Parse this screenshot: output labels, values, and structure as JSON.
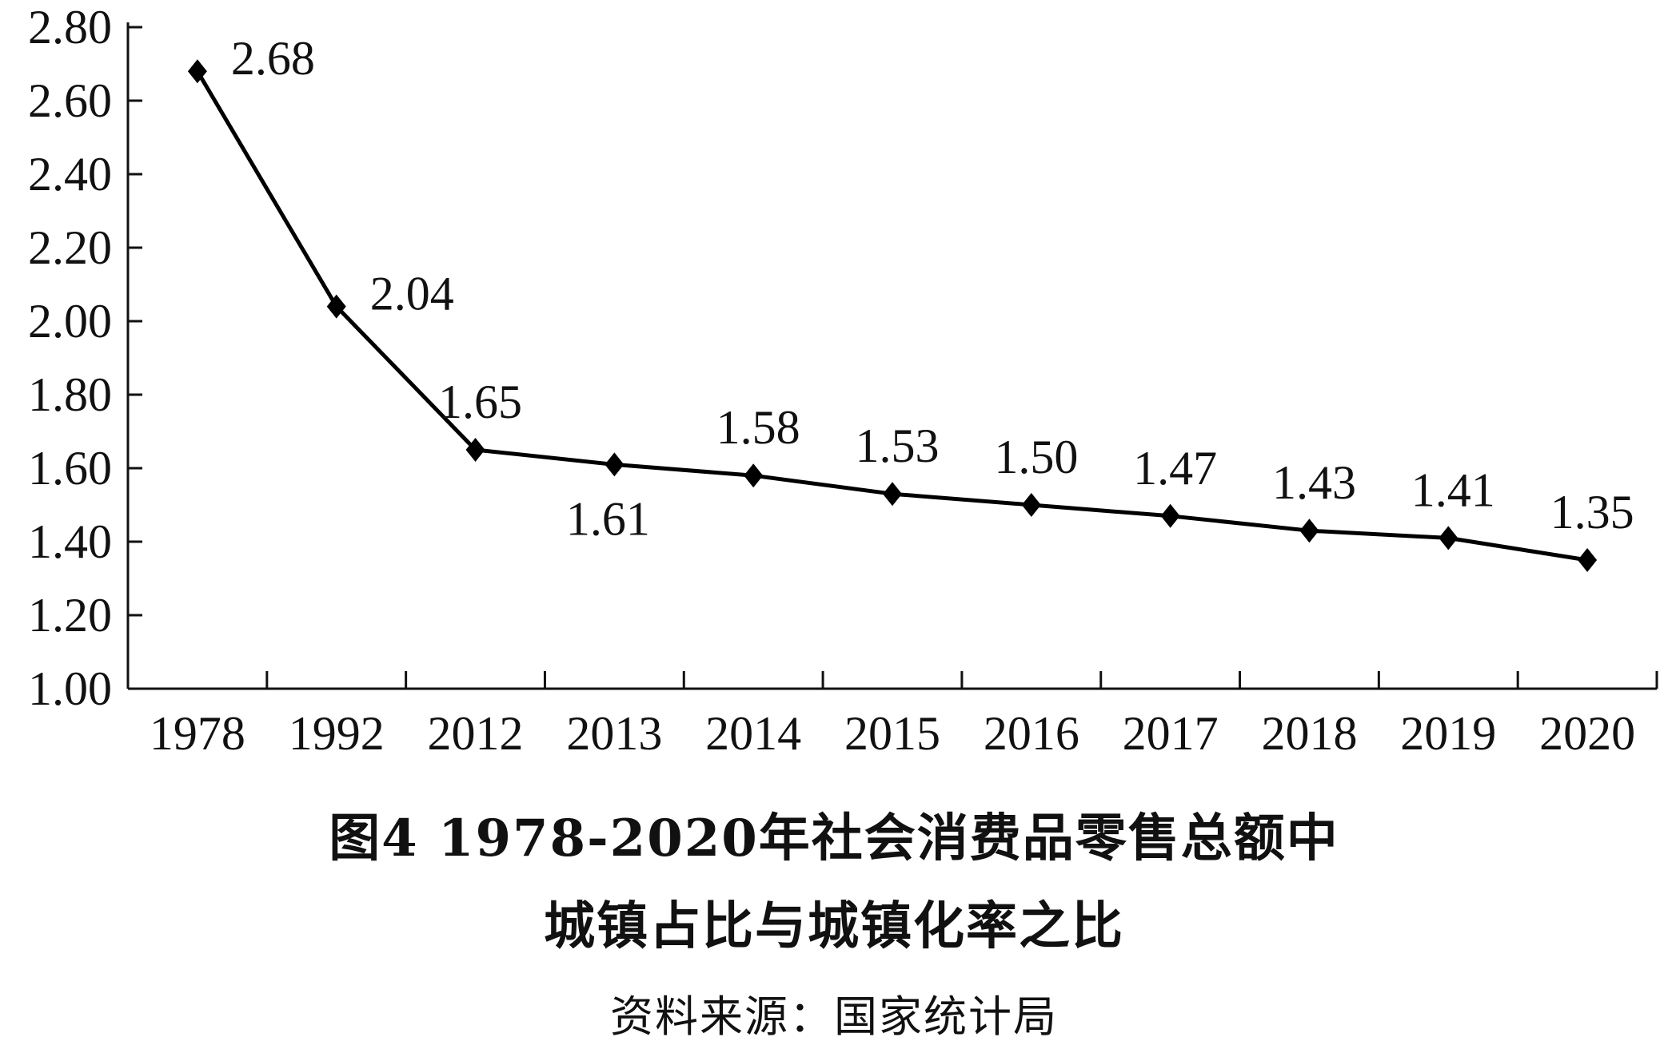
{
  "chart_data": {
    "type": "line",
    "categories": [
      "1978",
      "1992",
      "2012",
      "2013",
      "2014",
      "2015",
      "2016",
      "2017",
      "2018",
      "2019",
      "2020"
    ],
    "series": [
      {
        "values": [
          2.68,
          2.04,
          1.65,
          1.61,
          1.58,
          1.53,
          1.5,
          1.47,
          1.43,
          1.41,
          1.35
        ],
        "labels": [
          "2.68",
          "2.04",
          "1.65",
          "1.61",
          "1.58",
          "1.53",
          "1.50",
          "1.47",
          "1.43",
          "1.41",
          "1.35"
        ],
        "label_position": [
          "right",
          "right",
          "above",
          "below",
          "above",
          "above",
          "above",
          "above",
          "above",
          "above",
          "above"
        ],
        "marker": "diamond",
        "color": "#000000"
      }
    ],
    "ylim": [
      1.0,
      2.8
    ],
    "yticks": [
      "1.00",
      "1.20",
      "1.40",
      "1.60",
      "1.80",
      "2.00",
      "2.20",
      "2.40",
      "2.60",
      "2.80"
    ],
    "grid": false,
    "legend": "none"
  },
  "caption": {
    "title_line1": "图4  1978-2020年社会消费品零售总额中",
    "title_line2": "城镇占比与城镇化率之比",
    "source": "资料来源：国家统计局"
  }
}
